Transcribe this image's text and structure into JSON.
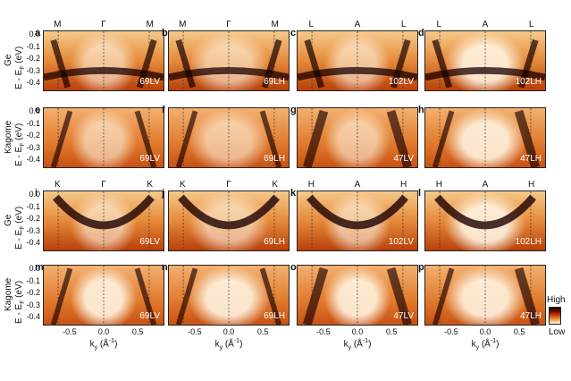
{
  "rows": [
    {
      "label": "Ge",
      "panels": [
        {
          "id": "a",
          "kpts": [
            "M",
            "Γ",
            "M"
          ],
          "tag": "69LV"
        },
        {
          "id": "b",
          "kpts": [
            "M",
            "Γ",
            "M"
          ],
          "tag": "69LH"
        },
        {
          "id": "c",
          "kpts": [
            "L",
            "A",
            "L"
          ],
          "tag": "102LV"
        },
        {
          "id": "d",
          "kpts": [
            "L",
            "A",
            "L"
          ],
          "tag": "102LH"
        }
      ]
    },
    {
      "label": "Kagome",
      "panels": [
        {
          "id": "e",
          "kpts": [],
          "tag": "69LV"
        },
        {
          "id": "f",
          "kpts": [],
          "tag": "69LH"
        },
        {
          "id": "g",
          "kpts": [],
          "tag": "47LV"
        },
        {
          "id": "h",
          "kpts": [],
          "tag": "47LH"
        }
      ]
    },
    {
      "label": "Ge",
      "panels": [
        {
          "id": "i",
          "kpts": [
            "K",
            "Γ",
            "K"
          ],
          "tag": "69LV"
        },
        {
          "id": "j",
          "kpts": [
            "K",
            "Γ",
            "K"
          ],
          "tag": "69LH"
        },
        {
          "id": "k",
          "kpts": [
            "H",
            "A",
            "H"
          ],
          "tag": "102LV"
        },
        {
          "id": "l",
          "kpts": [
            "H",
            "A",
            "H"
          ],
          "tag": "102LH"
        }
      ]
    },
    {
      "label": "Kagome",
      "panels": [
        {
          "id": "m",
          "kpts": [],
          "tag": "69LV"
        },
        {
          "id": "n",
          "kpts": [],
          "tag": "69LH"
        },
        {
          "id": "o",
          "kpts": [],
          "tag": "47LV"
        },
        {
          "id": "p",
          "kpts": [],
          "tag": "47LH"
        }
      ]
    }
  ],
  "y_axis": {
    "label_main": "E - E",
    "label_sub": "F",
    "label_unit": " (eV)",
    "ticks": [
      "0.0",
      "-0.1",
      "-0.2",
      "-0.3",
      "-0.4"
    ]
  },
  "x_axis": {
    "label_main": "k",
    "label_sub": "y",
    "label_unit": " (Å",
    "label_sup": "-1",
    "label_close": ")",
    "ticks": [
      "-0.5",
      "0.0",
      "0.5"
    ]
  },
  "colorbar": {
    "high": "High",
    "low": "Low"
  },
  "colors": {
    "dark": "#1a0000",
    "mid": "#c0400a",
    "light": "#fff3e0"
  }
}
